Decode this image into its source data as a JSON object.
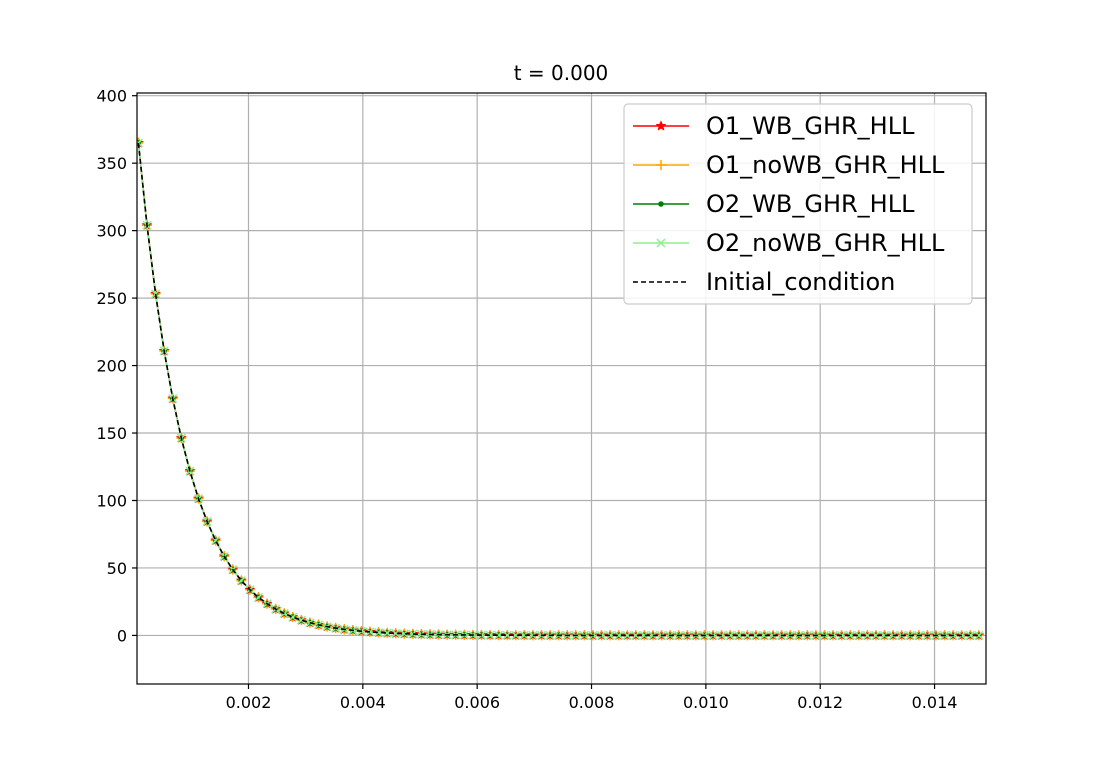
{
  "chart_data": {
    "type": "line",
    "title": "t = 0.000",
    "xlabel": "",
    "ylabel": "",
    "xlim": [
      5e-05,
      0.0149
    ],
    "ylim": [
      -36,
      402
    ],
    "xticks": [
      0.002,
      0.004,
      0.006,
      0.008,
      0.01,
      0.012,
      0.014
    ],
    "xtick_labels": [
      "0.002",
      "0.004",
      "0.006",
      "0.008",
      "0.010",
      "0.012",
      "0.014"
    ],
    "yticks": [
      0,
      50,
      100,
      150,
      200,
      250,
      300,
      350,
      400
    ],
    "ytick_labels": [
      "0",
      "50",
      "100",
      "150",
      "200",
      "250",
      "300",
      "350",
      "400"
    ],
    "grid": true,
    "legend_position": "top-right",
    "curve": {
      "x_start": 7.5e-05,
      "x_step": 0.00015,
      "count": 99,
      "amplitude": 365,
      "decay_length": 0.00082,
      "floor": 0
    },
    "series": [
      {
        "name": "O1_WB_GHR_HLL",
        "color": "#ff0000",
        "marker": "star",
        "linestyle": "solid"
      },
      {
        "name": "O1_noWB_GHR_HLL",
        "color": "#ffa500",
        "marker": "plus",
        "linestyle": "solid"
      },
      {
        "name": "O2_WB_GHR_HLL",
        "color": "#008000",
        "marker": "dot",
        "linestyle": "solid"
      },
      {
        "name": "O2_noWB_GHR_HLL",
        "color": "#90ee90",
        "marker": "x",
        "linestyle": "solid"
      },
      {
        "name": "Initial_condition",
        "color": "#000000",
        "marker": "none",
        "linestyle": "dashed"
      }
    ]
  }
}
